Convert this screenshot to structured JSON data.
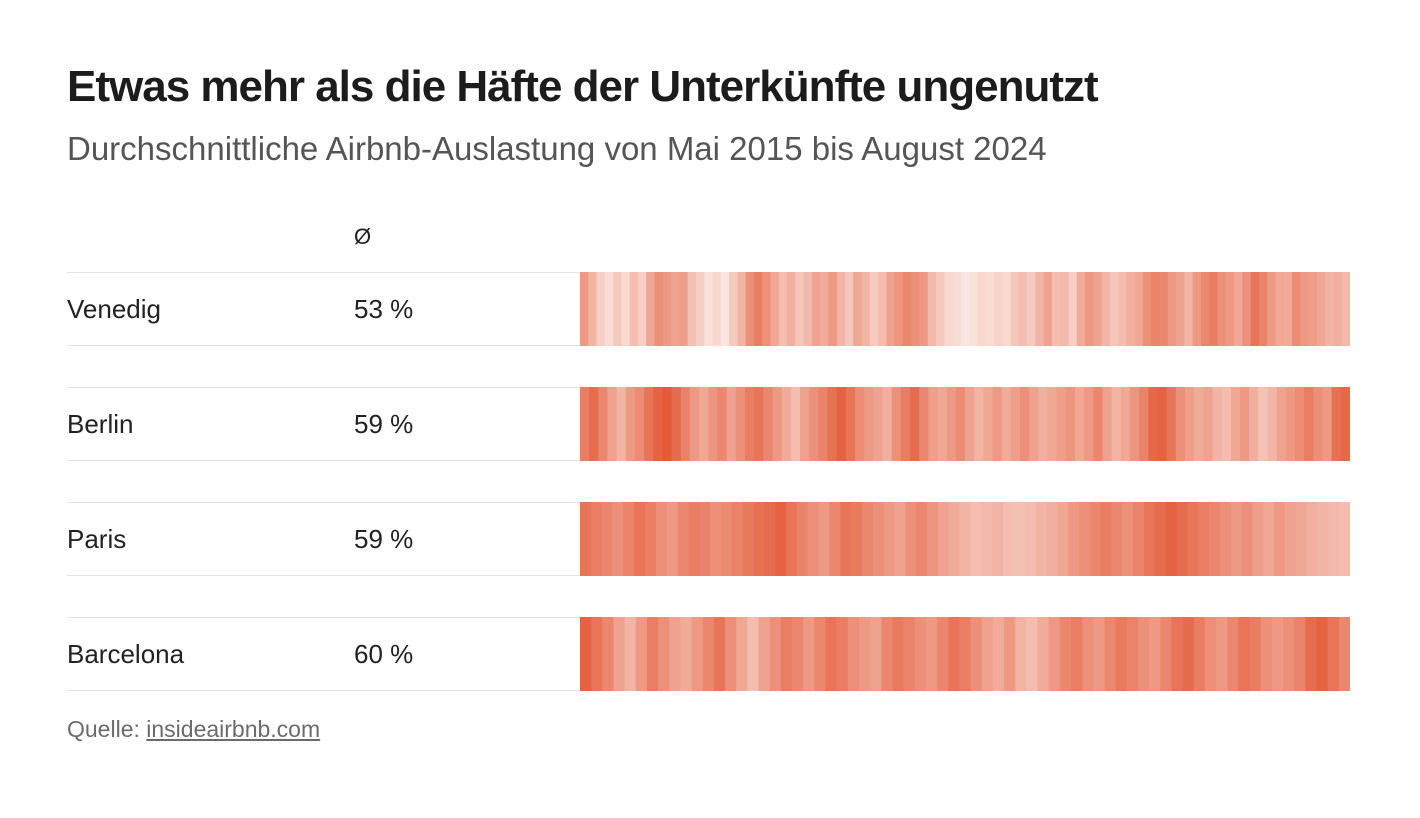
{
  "title": "Etwas mehr als die Häfte der Unterkünfte ungenutzt",
  "subtitle": "Durchschnittliche Airbnb-Auslastung von Mai 2015 bis August 2024",
  "avg_header": "Ø",
  "source": {
    "prefix": "Quelle:",
    "link_text": "insideairbnb.com"
  },
  "colors": {
    "low": "#fbeae5",
    "high": "#e35a38"
  },
  "chart_data": {
    "type": "heatmap",
    "title": "Etwas mehr als die Häfte der Unterkünfte ungenutzt",
    "subtitle": "Durchschnittliche Airbnb-Auslastung von Mai 2015 bis August 2024",
    "period": "Mai 2015 – August 2024",
    "value_unit": "%",
    "color_range": [
      40,
      72
    ],
    "rows": [
      {
        "city": "Venedig",
        "avg": 53,
        "avg_label": "53 %",
        "values": [
          58,
          52,
          46,
          43,
          47,
          44,
          50,
          46,
          55,
          60,
          58,
          56,
          57,
          49,
          46,
          42,
          44,
          41,
          47,
          52,
          60,
          64,
          60,
          55,
          50,
          53,
          48,
          51,
          56,
          54,
          58,
          52,
          48,
          55,
          52,
          47,
          50,
          56,
          59,
          62,
          60,
          58,
          51,
          47,
          44,
          43,
          41,
          42,
          44,
          43,
          45,
          44,
          48,
          50,
          47,
          52,
          56,
          50,
          51,
          46,
          54,
          58,
          56,
          52,
          48,
          50,
          53,
          55,
          60,
          63,
          62,
          58,
          56,
          52,
          58,
          62,
          64,
          60,
          58,
          55,
          60,
          66,
          63,
          58,
          55,
          54,
          61,
          58,
          57,
          55,
          52,
          53,
          51
        ]
      },
      {
        "city": "Berlin",
        "avg": 59,
        "avg_label": "59 %",
        "values": [
          64,
          68,
          62,
          56,
          52,
          58,
          61,
          66,
          70,
          72,
          68,
          63,
          58,
          55,
          59,
          62,
          56,
          60,
          64,
          66,
          62,
          58,
          54,
          50,
          56,
          60,
          63,
          67,
          70,
          66,
          61,
          58,
          56,
          53,
          60,
          64,
          68,
          62,
          57,
          55,
          58,
          61,
          56,
          52,
          55,
          58,
          54,
          57,
          60,
          56,
          53,
          55,
          57,
          59,
          55,
          58,
          62,
          56,
          52,
          55,
          59,
          63,
          69,
          70,
          66,
          60,
          57,
          54,
          56,
          52,
          50,
          55,
          58,
          53,
          49,
          52,
          56,
          58,
          61,
          64,
          60,
          58,
          67,
          69
        ]
      },
      {
        "city": "Paris",
        "avg": 59,
        "avg_label": "59 %",
        "values": [
          66,
          64,
          62,
          60,
          63,
          66,
          64,
          60,
          58,
          62,
          64,
          63,
          60,
          61,
          63,
          65,
          67,
          68,
          70,
          66,
          63,
          60,
          58,
          62,
          66,
          65,
          62,
          60,
          58,
          56,
          60,
          62,
          59,
          56,
          54,
          52,
          50,
          51,
          52,
          50,
          49,
          50,
          52,
          53,
          55,
          58,
          60,
          62,
          64,
          62,
          60,
          63,
          66,
          68,
          70,
          68,
          66,
          64,
          62,
          60,
          58,
          60,
          57,
          55,
          58,
          56,
          55,
          53,
          52,
          51,
          50
        ]
      },
      {
        "city": "Barcelona",
        "avg": 60,
        "avg_label": "60 %",
        "values": [
          70,
          66,
          62,
          56,
          52,
          58,
          64,
          60,
          56,
          54,
          58,
          62,
          66,
          60,
          55,
          50,
          56,
          60,
          64,
          62,
          58,
          62,
          66,
          64,
          60,
          58,
          56,
          62,
          65,
          63,
          60,
          58,
          62,
          66,
          64,
          60,
          56,
          54,
          58,
          52,
          50,
          54,
          58,
          62,
          64,
          60,
          58,
          62,
          65,
          63,
          60,
          58,
          62,
          66,
          68,
          64,
          60,
          58,
          62,
          66,
          64,
          60,
          58,
          60,
          63,
          68,
          70,
          66,
          62
        ]
      }
    ]
  }
}
